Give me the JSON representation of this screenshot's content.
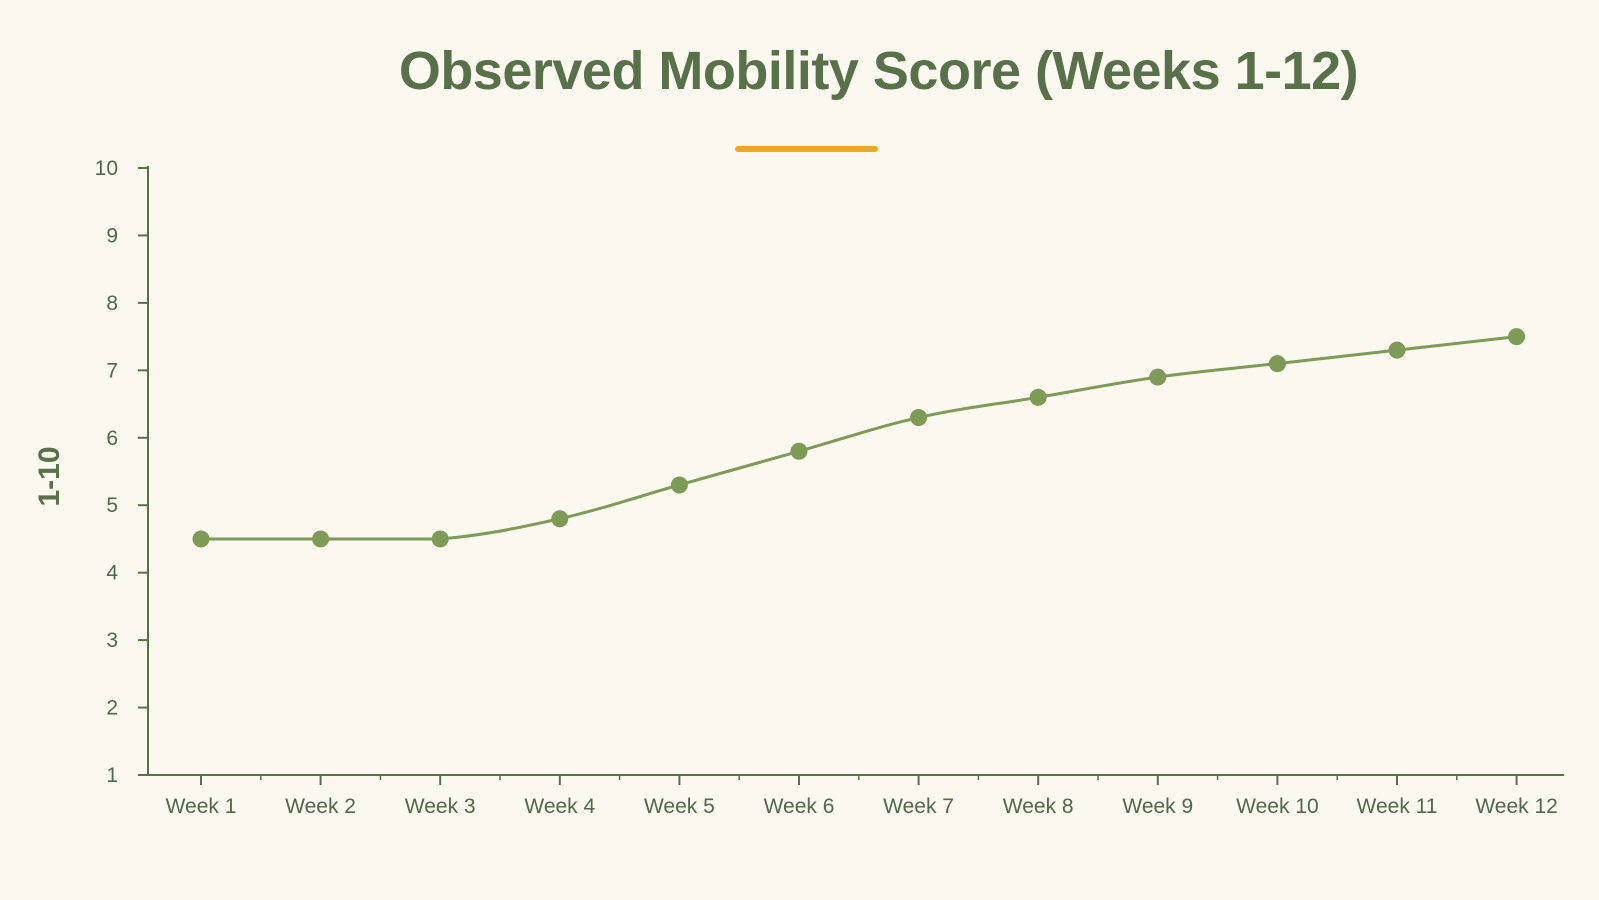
{
  "chart_data": {
    "type": "line",
    "title": "Observed Mobility Score (Weeks 1-12)",
    "xlabel": "",
    "ylabel": "1-10",
    "categories": [
      "Week 1",
      "Week 2",
      "Week 3",
      "Week 4",
      "Week 5",
      "Week 6",
      "Week 7",
      "Week 8",
      "Week 9",
      "Week 10",
      "Week 11",
      "Week 12"
    ],
    "series": [
      {
        "values": [
          4.5,
          4.5,
          4.5,
          4.8,
          5.3,
          5.8,
          6.3,
          6.6,
          6.9,
          7.1,
          7.3,
          7.5
        ]
      }
    ],
    "ylim": [
      1,
      10
    ],
    "yticks": [
      "1",
      "2",
      "3",
      "4",
      "5",
      "6",
      "7",
      "8",
      "9",
      "10"
    ],
    "grid": false,
    "legend": "none",
    "colors": {
      "line": "#7e9a57",
      "marker": "#7e9a57",
      "axis": "#58714a",
      "text": "#4f6a4a",
      "title": "#58714a",
      "accent": "#e9a82a",
      "background": "#fbf8f0"
    }
  }
}
